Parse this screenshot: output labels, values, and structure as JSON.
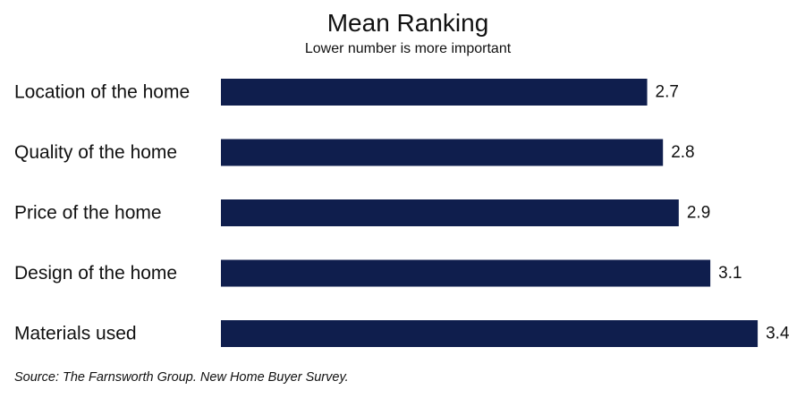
{
  "chart_data": {
    "type": "bar",
    "orientation": "horizontal",
    "title": "Mean Ranking",
    "subtitle": "Lower number is more important",
    "categories": [
      "Location of the home",
      "Quality of the home",
      "Price of the home",
      "Design of the home",
      "Materials used"
    ],
    "values": [
      2.7,
      2.8,
      2.9,
      3.1,
      3.4
    ],
    "value_labels": [
      "2.7",
      "2.8",
      "2.9",
      "3.1",
      "3.4"
    ],
    "xlim": [
      0,
      3.4
    ],
    "grid": false,
    "legend": "none",
    "bar_color": "#0f1e4d",
    "source": "Source: The Farnsworth Group. New Home Buyer Survey."
  }
}
